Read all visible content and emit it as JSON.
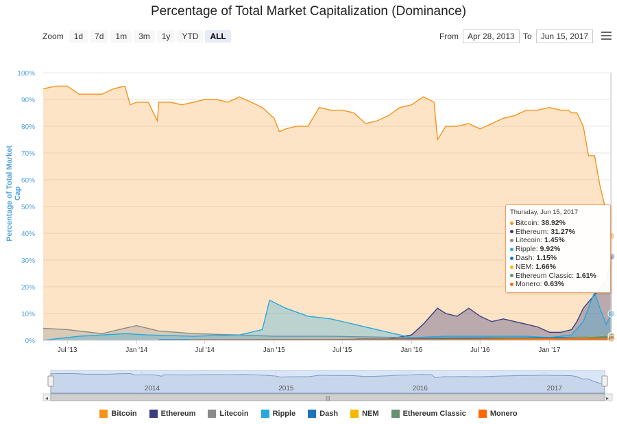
{
  "title": "Percentage of Total Market Capitalization (Dominance)",
  "zoom": {
    "label": "Zoom",
    "buttons": [
      "1d",
      "7d",
      "1m",
      "3m",
      "1y",
      "YTD",
      "ALL"
    ],
    "active": "ALL"
  },
  "range": {
    "from_label": "From",
    "from_value": "Apr 28, 2013",
    "to_label": "To",
    "to_value": "Jun 15, 2017"
  },
  "colors": {
    "Bitcoin": "#f7931a",
    "Ethereum": "#3c3c7d",
    "Litecoin": "#8a8a8a",
    "Ripple": "#23a8e0",
    "Dash": "#1c75bc",
    "NEM": "#f5b800",
    "Ethereum Classic": "#669073",
    "Monero": "#ff6600"
  },
  "tooltip": {
    "header": "Thursday, Jun 15, 2017",
    "rows": [
      {
        "name": "Bitcoin",
        "value": "38.92%"
      },
      {
        "name": "Ethereum",
        "value": "31.27%"
      },
      {
        "name": "Litecoin",
        "value": "1.45%"
      },
      {
        "name": "Ripple",
        "value": "9.92%"
      },
      {
        "name": "Dash",
        "value": "1.15%"
      },
      {
        "name": "NEM",
        "value": "1.66%"
      },
      {
        "name": "Ethereum Classic",
        "value": "1.61%"
      },
      {
        "name": "Monero",
        "value": "0.63%"
      }
    ]
  },
  "navigator": {
    "year_labels": [
      "2014",
      "2015",
      "2016",
      "2017"
    ]
  },
  "chart_data": {
    "type": "area",
    "title": "Percentage of Total Market Capitalization (Dominance)",
    "ylabel": "Percentage of Total Market Cap",
    "xlabel": "",
    "ylim": [
      0,
      100
    ],
    "y_ticks": [
      "0%",
      "10%",
      "20%",
      "30%",
      "40%",
      "50%",
      "60%",
      "70%",
      "80%",
      "90%",
      "100%"
    ],
    "x_ticks": [
      "Jul '13",
      "Jan '14",
      "Jul '14",
      "Jan '15",
      "Jul '15",
      "Jan '16",
      "Jul '16",
      "Jan '17"
    ],
    "x_range": [
      "2013-04-28",
      "2017-06-15"
    ],
    "grid": true,
    "legend_position": "bottom",
    "series": [
      {
        "name": "Bitcoin",
        "x": [
          "2013-04-28",
          "2013-06-01",
          "2013-07-01",
          "2013-08-01",
          "2013-09-01",
          "2013-10-01",
          "2013-11-01",
          "2013-12-01",
          "2013-12-15",
          "2014-01-01",
          "2014-02-01",
          "2014-02-25",
          "2014-03-01",
          "2014-04-01",
          "2014-05-01",
          "2014-06-01",
          "2014-07-01",
          "2014-08-01",
          "2014-09-01",
          "2014-10-01",
          "2014-11-01",
          "2014-12-01",
          "2015-01-01",
          "2015-01-15",
          "2015-02-01",
          "2015-03-01",
          "2015-04-01",
          "2015-05-01",
          "2015-06-01",
          "2015-07-01",
          "2015-08-01",
          "2015-09-01",
          "2015-10-01",
          "2015-11-01",
          "2015-12-01",
          "2016-01-01",
          "2016-02-01",
          "2016-03-01",
          "2016-03-10",
          "2016-04-01",
          "2016-05-01",
          "2016-06-01",
          "2016-07-01",
          "2016-08-01",
          "2016-09-01",
          "2016-10-01",
          "2016-11-01",
          "2016-12-01",
          "2017-01-01",
          "2017-02-01",
          "2017-02-20",
          "2017-03-01",
          "2017-03-15",
          "2017-04-01",
          "2017-04-15",
          "2017-05-01",
          "2017-05-15",
          "2017-06-01",
          "2017-06-15"
        ],
        "values": [
          94,
          95,
          95,
          92,
          92,
          92,
          94,
          95,
          88,
          89,
          89,
          82,
          89,
          89,
          88,
          89,
          90,
          90,
          89,
          91,
          89,
          87,
          83,
          78,
          79,
          80,
          80,
          87,
          86,
          86,
          85,
          81,
          82,
          84,
          87,
          88,
          91,
          89,
          75,
          80,
          80,
          81,
          79,
          81,
          83,
          84,
          86,
          86,
          87,
          86,
          86,
          85,
          85,
          80,
          69,
          69,
          58,
          48,
          38.92
        ]
      },
      {
        "name": "Ethereum",
        "x": [
          "2015-08-07",
          "2015-11-01",
          "2016-01-01",
          "2016-02-01",
          "2016-03-10",
          "2016-04-01",
          "2016-05-01",
          "2016-06-01",
          "2016-07-01",
          "2016-08-01",
          "2016-09-01",
          "2016-10-01",
          "2016-11-01",
          "2016-12-01",
          "2017-01-01",
          "2017-02-01",
          "2017-03-01",
          "2017-03-15",
          "2017-04-01",
          "2017-05-01",
          "2017-06-01",
          "2017-06-15"
        ],
        "values": [
          0.5,
          0.5,
          2,
          6,
          12,
          10,
          9,
          12,
          9,
          7,
          8,
          7,
          6,
          5,
          3,
          3,
          4,
          7,
          12,
          17,
          22,
          31.27
        ]
      },
      {
        "name": "Litecoin",
        "x": [
          "2013-04-28",
          "2013-07-01",
          "2013-10-01",
          "2013-12-01",
          "2014-01-01",
          "2014-03-01",
          "2014-06-01",
          "2014-10-01",
          "2015-01-01",
          "2015-06-01",
          "2016-01-01",
          "2016-06-01",
          "2017-01-01",
          "2017-04-01",
          "2017-06-15"
        ],
        "values": [
          4.5,
          4,
          2.5,
          4.5,
          5.5,
          3.5,
          2.5,
          2,
          1.5,
          1.5,
          1,
          1,
          1,
          1.2,
          1.45
        ]
      },
      {
        "name": "Ripple",
        "x": [
          "2013-04-28",
          "2013-08-01",
          "2013-12-01",
          "2014-02-01",
          "2014-06-01",
          "2014-10-01",
          "2014-12-01",
          "2014-12-20",
          "2015-02-01",
          "2015-04-01",
          "2015-06-01",
          "2015-08-01",
          "2015-10-01",
          "2016-01-01",
          "2016-04-01",
          "2016-08-01",
          "2016-11-01",
          "2017-01-01",
          "2017-03-01",
          "2017-04-01",
          "2017-05-01",
          "2017-05-15",
          "2017-06-01",
          "2017-06-15"
        ],
        "values": [
          0,
          1.5,
          2.5,
          2,
          1.5,
          2,
          4,
          15,
          12,
          9,
          8,
          6,
          4,
          1,
          1.5,
          1.5,
          1.5,
          1,
          2,
          7,
          18,
          12,
          6,
          9.92
        ]
      },
      {
        "name": "Dash",
        "x": [
          "2014-03-01",
          "2015-06-01",
          "2016-03-01",
          "2017-01-01",
          "2017-06-15"
        ],
        "values": [
          0.2,
          0.3,
          0.6,
          0.9,
          1.15
        ]
      },
      {
        "name": "NEM",
        "x": [
          "2015-04-01",
          "2016-06-01",
          "2017-01-01",
          "2017-06-15"
        ],
        "values": [
          0.1,
          0.2,
          0.3,
          1.66
        ]
      },
      {
        "name": "Ethereum Classic",
        "x": [
          "2016-07-24",
          "2016-12-01",
          "2017-03-01",
          "2017-06-15"
        ],
        "values": [
          1,
          0.6,
          0.6,
          1.61
        ]
      },
      {
        "name": "Monero",
        "x": [
          "2014-05-20",
          "2015-06-01",
          "2016-06-01",
          "2017-01-01",
          "2017-06-15"
        ],
        "values": [
          0.1,
          0.2,
          0.4,
          0.6,
          0.63
        ]
      }
    ]
  },
  "legend": [
    "Bitcoin",
    "Ethereum",
    "Litecoin",
    "Ripple",
    "Dash",
    "NEM",
    "Ethereum Classic",
    "Monero"
  ]
}
